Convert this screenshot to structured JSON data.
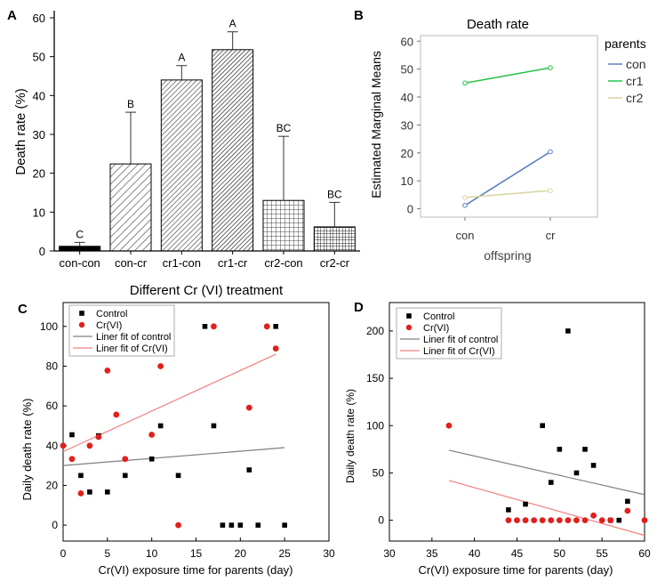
{
  "chart_data": [
    {
      "panel": "A",
      "type": "bar",
      "ylabel": "Death rate (%)",
      "xlabel": "Different Cr (VI) treatment",
      "ylim": [
        0,
        60
      ],
      "yticks": [
        0,
        10,
        20,
        30,
        40,
        50,
        60
      ],
      "categories": [
        "con-con",
        "con-cr",
        "cr1-con",
        "cr1-cr",
        "cr2-con",
        "cr2-cr"
      ],
      "values": [
        1.2,
        22.4,
        44,
        51.8,
        13,
        6.2
      ],
      "errors": [
        1,
        13.3,
        3.7,
        4.6,
        16.5,
        6.3
      ],
      "letters": [
        "C",
        "B",
        "A",
        "A",
        "BC",
        "BC"
      ]
    },
    {
      "panel": "B",
      "type": "line",
      "title": "Death rate",
      "ylabel": "Estimated Marginal Means",
      "xlabel": "offspring",
      "legend_title": "parents",
      "categories": [
        "con",
        "cr"
      ],
      "ylim": [
        -3,
        62
      ],
      "yticks": [
        0,
        10,
        20,
        30,
        40,
        50,
        60
      ],
      "series": [
        {
          "name": "con",
          "color": "#5b7fc1",
          "values": [
            1.2,
            20.4
          ]
        },
        {
          "name": "cr1",
          "color": "#27c24a",
          "values": [
            45,
            50.5
          ]
        },
        {
          "name": "cr2",
          "color": "#d8d4a0",
          "values": [
            4,
            6.5
          ]
        }
      ]
    },
    {
      "panel": "C",
      "type": "scatter",
      "xlabel": "Cr(VI) exposure time for parents (day)",
      "ylabel": "Daily death rate (%)",
      "xlim": [
        0,
        30
      ],
      "ylim": [
        -8,
        112
      ],
      "xticks": [
        0,
        5,
        10,
        15,
        20,
        25,
        30
      ],
      "yticks": [
        0,
        20,
        40,
        60,
        80,
        100
      ],
      "series": [
        {
          "name": "Control",
          "marker": "square",
          "color": "#000000",
          "points": [
            [
              1,
              45.5
            ],
            [
              2,
              25
            ],
            [
              3,
              16.7
            ],
            [
              4,
              45
            ],
            [
              5,
              16.7
            ],
            [
              7,
              25
            ],
            [
              10,
              33.3
            ],
            [
              11,
              50
            ],
            [
              13,
              25
            ],
            [
              16,
              100
            ],
            [
              17,
              50
            ],
            [
              18,
              0
            ],
            [
              19,
              0
            ],
            [
              20,
              0
            ],
            [
              21,
              27.8
            ],
            [
              22,
              0
            ],
            [
              24,
              100
            ],
            [
              25,
              0
            ]
          ]
        },
        {
          "name": "Cr(VI)",
          "marker": "circle",
          "color": "#e0201c",
          "points": [
            [
              0,
              40
            ],
            [
              1,
              33.3
            ],
            [
              2,
              16
            ],
            [
              3,
              40
            ],
            [
              4,
              44.4
            ],
            [
              5,
              77.8
            ],
            [
              6,
              55.6
            ],
            [
              7,
              33.3
            ],
            [
              10,
              45.5
            ],
            [
              11,
              80
            ],
            [
              13,
              0
            ],
            [
              17,
              100
            ],
            [
              21,
              59.1
            ],
            [
              23,
              100
            ],
            [
              24,
              88.9
            ]
          ]
        }
      ],
      "fits": [
        {
          "name": "Liner fit of control",
          "color": "#808080",
          "from": [
            0,
            30
          ],
          "to": [
            25,
            39
          ]
        },
        {
          "name": "Liner fit of Cr(VI)",
          "color": "#f08080",
          "from": [
            0,
            37
          ],
          "to": [
            24,
            86
          ]
        }
      ]
    },
    {
      "panel": "D",
      "type": "scatter",
      "xlabel": "Cr(VI) exposure time for parents (day)",
      "ylabel": "Daily death rate (%)",
      "xlim": [
        30,
        60
      ],
      "ylim": [
        -22,
        230
      ],
      "xticks": [
        30,
        35,
        40,
        45,
        50,
        55,
        60
      ],
      "yticks": [
        0,
        50,
        100,
        150,
        200
      ],
      "series": [
        {
          "name": "Control",
          "marker": "square",
          "color": "#000000",
          "points": [
            [
              44,
              11
            ],
            [
              46,
              17
            ],
            [
              48,
              100
            ],
            [
              49,
              40
            ],
            [
              50,
              75
            ],
            [
              51,
              200
            ],
            [
              52,
              50
            ],
            [
              53,
              75
            ],
            [
              54,
              58
            ],
            [
              56,
              0
            ],
            [
              57,
              0
            ],
            [
              58,
              20
            ]
          ]
        },
        {
          "name": "Cr(VI)",
          "marker": "circle",
          "color": "#e0201c",
          "points": [
            [
              37,
              100
            ],
            [
              44,
              0
            ],
            [
              45,
              0
            ],
            [
              46,
              0
            ],
            [
              47,
              0
            ],
            [
              48,
              0
            ],
            [
              49,
              0
            ],
            [
              50,
              0
            ],
            [
              51,
              0
            ],
            [
              52,
              0
            ],
            [
              53,
              0
            ],
            [
              54,
              5
            ],
            [
              55,
              0
            ],
            [
              56,
              0
            ],
            [
              58,
              10
            ],
            [
              60,
              0
            ]
          ]
        }
      ],
      "fits": [
        {
          "name": "Liner fit of control",
          "color": "#808080",
          "from": [
            37,
            74
          ],
          "to": [
            60,
            27
          ]
        },
        {
          "name": "Liner fit of Cr(VI)",
          "color": "#f08080",
          "from": [
            37,
            42
          ],
          "to": [
            60,
            -16
          ]
        }
      ]
    }
  ]
}
